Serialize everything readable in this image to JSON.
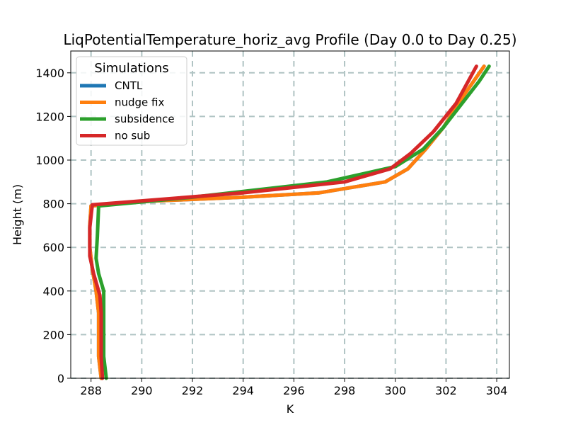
{
  "chart_data": {
    "type": "line",
    "title": "LiqPotentialTemperature_horiz_avg Profile (Day 0.0 to Day 0.25)",
    "xlabel": "K",
    "ylabel": "Height (m)",
    "xlim": [
      287.2,
      304.5
    ],
    "ylim": [
      0,
      1500
    ],
    "xticks": [
      288,
      290,
      292,
      294,
      296,
      298,
      300,
      302,
      304
    ],
    "yticks": [
      0,
      200,
      400,
      600,
      800,
      1000,
      1200,
      1400
    ],
    "grid": true,
    "legend": {
      "title": "Simulations",
      "position": "top-left"
    },
    "series": [
      {
        "name": "CNTL",
        "color": "#1f77b4",
        "points": [
          [
            288.4,
            0
          ],
          [
            288.3,
            100
          ],
          [
            288.3,
            200
          ],
          [
            288.3,
            300
          ],
          [
            288.2,
            400
          ],
          [
            288.05,
            500
          ],
          [
            287.95,
            600
          ],
          [
            287.95,
            700
          ],
          [
            288.0,
            790
          ],
          [
            290.0,
            810
          ],
          [
            294.0,
            830
          ],
          [
            297.0,
            850
          ],
          [
            299.6,
            900
          ],
          [
            300.5,
            960
          ],
          [
            301.2,
            1050
          ],
          [
            301.9,
            1150
          ],
          [
            302.6,
            1280
          ],
          [
            303.2,
            1380
          ],
          [
            303.5,
            1430
          ]
        ]
      },
      {
        "name": "nudge fix",
        "color": "#ff7f0e",
        "points": [
          [
            288.4,
            0
          ],
          [
            288.3,
            100
          ],
          [
            288.3,
            200
          ],
          [
            288.3,
            300
          ],
          [
            288.2,
            400
          ],
          [
            288.05,
            500
          ],
          [
            287.95,
            600
          ],
          [
            287.95,
            700
          ],
          [
            288.0,
            790
          ],
          [
            290.0,
            810
          ],
          [
            294.0,
            830
          ],
          [
            297.0,
            850
          ],
          [
            299.6,
            900
          ],
          [
            300.5,
            960
          ],
          [
            301.2,
            1050
          ],
          [
            301.9,
            1150
          ],
          [
            302.6,
            1280
          ],
          [
            303.2,
            1380
          ],
          [
            303.5,
            1430
          ]
        ]
      },
      {
        "name": "subsidence",
        "color": "#2ca02c",
        "points": [
          [
            288.6,
            0
          ],
          [
            288.5,
            100
          ],
          [
            288.5,
            200
          ],
          [
            288.5,
            300
          ],
          [
            288.5,
            400
          ],
          [
            288.3,
            480
          ],
          [
            288.2,
            550
          ],
          [
            288.25,
            650
          ],
          [
            288.3,
            790
          ],
          [
            292.0,
            830
          ],
          [
            297.3,
            900
          ],
          [
            300.0,
            970
          ],
          [
            301.1,
            1050
          ],
          [
            301.9,
            1150
          ],
          [
            302.7,
            1270
          ],
          [
            303.3,
            1360
          ],
          [
            303.7,
            1430
          ]
        ]
      },
      {
        "name": "no sub",
        "color": "#d62728",
        "points": [
          [
            288.45,
            0
          ],
          [
            288.4,
            100
          ],
          [
            288.4,
            200
          ],
          [
            288.4,
            300
          ],
          [
            288.35,
            380
          ],
          [
            288.1,
            480
          ],
          [
            287.95,
            560
          ],
          [
            287.95,
            690
          ],
          [
            288.05,
            795
          ],
          [
            294.0,
            850
          ],
          [
            298.0,
            900
          ],
          [
            299.8,
            960
          ],
          [
            300.6,
            1030
          ],
          [
            301.5,
            1130
          ],
          [
            302.4,
            1260
          ],
          [
            303.2,
            1430
          ]
        ]
      }
    ]
  }
}
